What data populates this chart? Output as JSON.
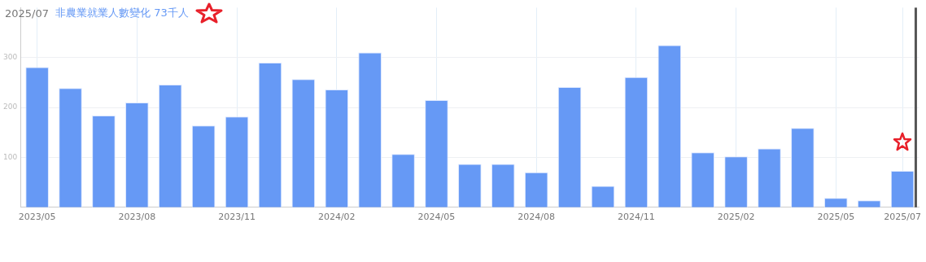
{
  "chart_data": {
    "type": "bar",
    "title": "2025/07",
    "subtitle": "非農業就業人數變化 73千人",
    "categories": [
      "2023/05",
      null,
      null,
      "2023/08",
      null,
      null,
      "2023/11",
      null,
      null,
      "2024/02",
      null,
      null,
      "2024/05",
      null,
      null,
      "2024/08",
      null,
      null,
      "2024/11",
      null,
      null,
      "2025/02",
      null,
      null,
      "2025/05",
      null,
      "2025/07"
    ],
    "values": [
      281,
      239,
      184,
      210,
      246,
      164,
      182,
      290,
      257,
      236,
      310,
      107,
      215,
      87,
      87,
      70,
      241,
      43,
      261,
      325,
      110,
      102,
      118,
      159,
      19,
      14,
      73
    ],
    "color": "#6699f5",
    "ylim": [
      0,
      400
    ],
    "yticks": [
      100,
      200,
      300
    ],
    "grid": true,
    "ref_lines": [
      {
        "axis": "x",
        "value": "2025/07",
        "color": "#555555"
      }
    ]
  }
}
